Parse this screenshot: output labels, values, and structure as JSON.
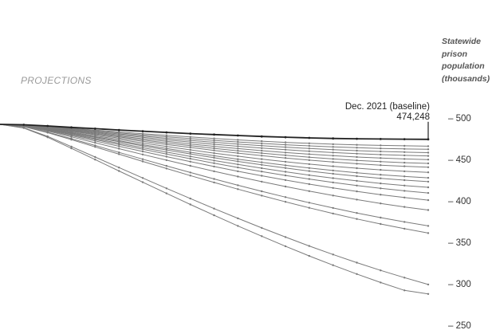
{
  "section_label": "PROJECTIONS",
  "y_axis_label_lines": [
    "Statewide",
    "prison",
    "population",
    "(thousands)"
  ],
  "annotation": {
    "line1": "Dec. 2021 (baseline)",
    "line2": "474,248"
  },
  "chart_data": {
    "type": "line",
    "title": "",
    "xlabel": "",
    "ylabel": "Statewide prison population (thousands)",
    "yticks": [
      {
        "value": 500,
        "label": "– 500"
      },
      {
        "value": 450,
        "label": "– 450"
      },
      {
        "value": 400,
        "label": "– 400"
      },
      {
        "value": 350,
        "label": "– 350"
      },
      {
        "value": 300,
        "label": "– 300"
      },
      {
        "value": 250,
        "label": "– 250"
      }
    ],
    "ylim": [
      250,
      500
    ],
    "grid": false,
    "point_count": 19,
    "baseline_color": "#222222",
    "series_color": "#7a7a7a",
    "series": [
      {
        "baseline": true,
        "values": [
          492.3,
          491.8,
          490.4,
          488.7,
          487.1,
          485.5,
          484.0,
          482.6,
          481.2,
          480.0,
          478.8,
          477.7,
          476.8,
          476.0,
          475.3,
          474.9,
          474.6,
          474.4,
          474.2
        ]
      },
      {
        "values": [
          492.3,
          491.6,
          489.8,
          487.6,
          485.4,
          483.2,
          481.1,
          479.1,
          477.1,
          475.3,
          473.6,
          472.0,
          470.6,
          469.4,
          468.4,
          467.6,
          466.9,
          466.4,
          466.0
        ]
      },
      {
        "values": [
          492.3,
          491.5,
          489.5,
          487.0,
          484.5,
          482.0,
          479.6,
          477.3,
          475.1,
          473.0,
          471.1,
          469.3,
          467.7,
          466.3,
          465.1,
          464.1,
          463.3,
          462.7,
          462.2
        ]
      },
      {
        "values": [
          492.3,
          491.4,
          489.1,
          486.4,
          483.6,
          480.8,
          478.1,
          475.5,
          473.0,
          470.7,
          468.6,
          466.6,
          464.8,
          463.2,
          461.8,
          460.6,
          459.6,
          458.8,
          458.2
        ]
      },
      {
        "values": [
          492.3,
          491.3,
          488.8,
          485.8,
          482.7,
          479.6,
          476.6,
          473.7,
          470.9,
          468.3,
          465.9,
          463.7,
          461.7,
          459.9,
          458.3,
          456.9,
          455.8,
          454.9,
          454.2
        ]
      },
      {
        "values": [
          492.3,
          491.2,
          488.4,
          485.1,
          481.7,
          478.3,
          475.0,
          471.8,
          468.7,
          465.8,
          463.1,
          460.6,
          458.3,
          456.3,
          454.5,
          452.9,
          451.6,
          450.6,
          449.8
        ]
      },
      {
        "values": [
          492.3,
          491.1,
          488.1,
          484.5,
          480.8,
          477.1,
          473.5,
          470.0,
          466.6,
          463.4,
          460.4,
          457.6,
          455.0,
          452.7,
          450.6,
          448.8,
          447.3,
          446.1,
          445.2
        ]
      },
      {
        "values": [
          492.3,
          491.0,
          487.7,
          483.8,
          479.8,
          475.8,
          471.9,
          468.1,
          464.4,
          460.9,
          457.6,
          454.5,
          451.7,
          449.1,
          446.8,
          444.8,
          443.1,
          441.7,
          440.6
        ]
      },
      {
        "values": [
          492.3,
          490.9,
          487.2,
          482.9,
          478.5,
          474.1,
          469.8,
          465.6,
          461.5,
          457.6,
          453.9,
          450.4,
          447.2,
          444.3,
          441.7,
          439.4,
          437.4,
          435.7,
          434.4
        ]
      },
      {
        "values": [
          492.3,
          490.8,
          486.8,
          482.1,
          477.3,
          472.5,
          467.8,
          463.2,
          458.7,
          454.4,
          450.3,
          446.5,
          442.9,
          439.6,
          436.6,
          433.9,
          431.5,
          429.5,
          427.8
        ]
      },
      {
        "values": [
          492.3,
          490.7,
          486.5,
          481.5,
          476.4,
          471.3,
          466.3,
          461.4,
          456.6,
          452.0,
          447.6,
          443.5,
          439.6,
          436.0,
          432.7,
          429.8,
          427.2,
          425.0,
          423.2
        ]
      },
      {
        "values": [
          492.3,
          490.6,
          486.0,
          480.6,
          475.1,
          469.6,
          464.2,
          458.9,
          453.7,
          448.7,
          443.9,
          439.4,
          435.1,
          431.1,
          427.4,
          424.1,
          421.1,
          418.5,
          416.3
        ]
      },
      {
        "values": [
          492.3,
          490.5,
          485.6,
          479.8,
          473.9,
          468.0,
          462.2,
          456.5,
          450.9,
          445.5,
          440.3,
          435.4,
          430.7,
          426.3,
          422.2,
          418.5,
          415.1,
          412.1,
          409.5
        ]
      },
      {
        "values": [
          492.3,
          490.3,
          485.0,
          478.7,
          472.3,
          465.9,
          459.6,
          453.4,
          447.3,
          441.4,
          435.7,
          430.3,
          425.1,
          420.2,
          415.6,
          411.4,
          407.5,
          404.0,
          400.9
        ]
      },
      {
        "values": [
          492.3,
          490.1,
          484.2,
          477.2,
          470.1,
          463.0,
          456.0,
          449.1,
          442.3,
          435.7,
          429.3,
          423.2,
          417.3,
          411.7,
          406.4,
          401.5,
          396.9,
          392.7,
          388.9
        ]
      },
      {
        "values": [
          492.3,
          489.7,
          483.0,
          475.0,
          466.8,
          458.5,
          450.3,
          442.2,
          434.2,
          426.4,
          418.8,
          411.5,
          404.5,
          397.8,
          391.4,
          385.4,
          379.8,
          374.6,
          369.8
        ]
      },
      {
        "values": [
          492.3,
          489.5,
          482.3,
          473.8,
          465.1,
          456.3,
          447.6,
          439.0,
          430.5,
          422.2,
          414.1,
          406.3,
          398.8,
          391.6,
          384.7,
          378.2,
          372.1,
          366.4,
          361.2
        ]
      },
      {
        "values": [
          492.3,
          488.2,
          477.8,
          465.5,
          452.9,
          440.2,
          427.6,
          415.1,
          402.8,
          390.7,
          378.9,
          367.4,
          356.3,
          345.6,
          335.3,
          325.5,
          316.2,
          307.4,
          299.1
        ]
      },
      {
        "values": [
          492.3,
          487.9,
          476.7,
          463.4,
          449.8,
          436.1,
          422.5,
          409.0,
          395.7,
          382.6,
          369.8,
          357.4,
          345.3,
          333.6,
          322.4,
          311.7,
          301.5,
          292.0,
          287.7
        ]
      }
    ]
  }
}
